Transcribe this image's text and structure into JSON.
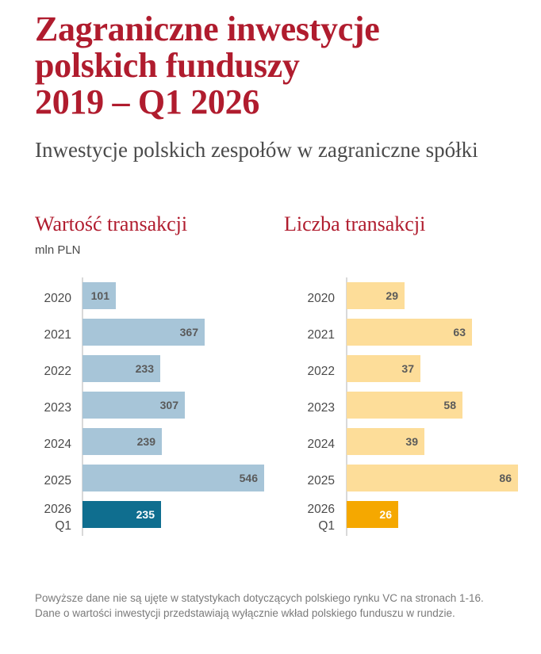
{
  "header": {
    "title_lines": [
      "Zagraniczne inwestycje",
      "polskich funduszy",
      "2019 – Q1 2026"
    ],
    "subtitle": "Inwestycje polskich zespołów w zagraniczne spółki"
  },
  "footnote": "Powyższe dane nie są ujęte w statystykach dotyczących polskiego rynku VC na stronach 1-16. Dane o wartości inwestycji przedstawiają wyłącznie wkład polskiego funduszu w rundzie.",
  "chart_data": [
    {
      "type": "bar",
      "orientation": "horizontal",
      "title": "Wartość transakcji",
      "unit": "mln PLN",
      "categories": [
        "2020",
        "2021",
        "2022",
        "2023",
        "2024",
        "2025",
        "2026 Q1"
      ],
      "category_lines": [
        [
          "2020"
        ],
        [
          "2021"
        ],
        [
          "2022"
        ],
        [
          "2023"
        ],
        [
          "2024"
        ],
        [
          "2025"
        ],
        [
          "2026",
          "Q1"
        ]
      ],
      "values": [
        101,
        367,
        233,
        307,
        239,
        546,
        235
      ],
      "colors": {
        "default": "#a7c5d8",
        "highlight": "#0f6e8f"
      },
      "highlight_index": 6,
      "xlim": [
        0,
        546
      ]
    },
    {
      "type": "bar",
      "orientation": "horizontal",
      "title": "Liczba transakcji",
      "unit": "",
      "categories": [
        "2020",
        "2021",
        "2022",
        "2023",
        "2024",
        "2025",
        "2026 Q1"
      ],
      "category_lines": [
        [
          "2020"
        ],
        [
          "2021"
        ],
        [
          "2022"
        ],
        [
          "2023"
        ],
        [
          "2024"
        ],
        [
          "2025"
        ],
        [
          "2026",
          "Q1"
        ]
      ],
      "values": [
        29,
        63,
        37,
        58,
        39,
        86,
        26
      ],
      "colors": {
        "default": "#fddd99",
        "highlight": "#f5a800"
      },
      "highlight_index": 6,
      "xlim": [
        0,
        86
      ]
    }
  ]
}
